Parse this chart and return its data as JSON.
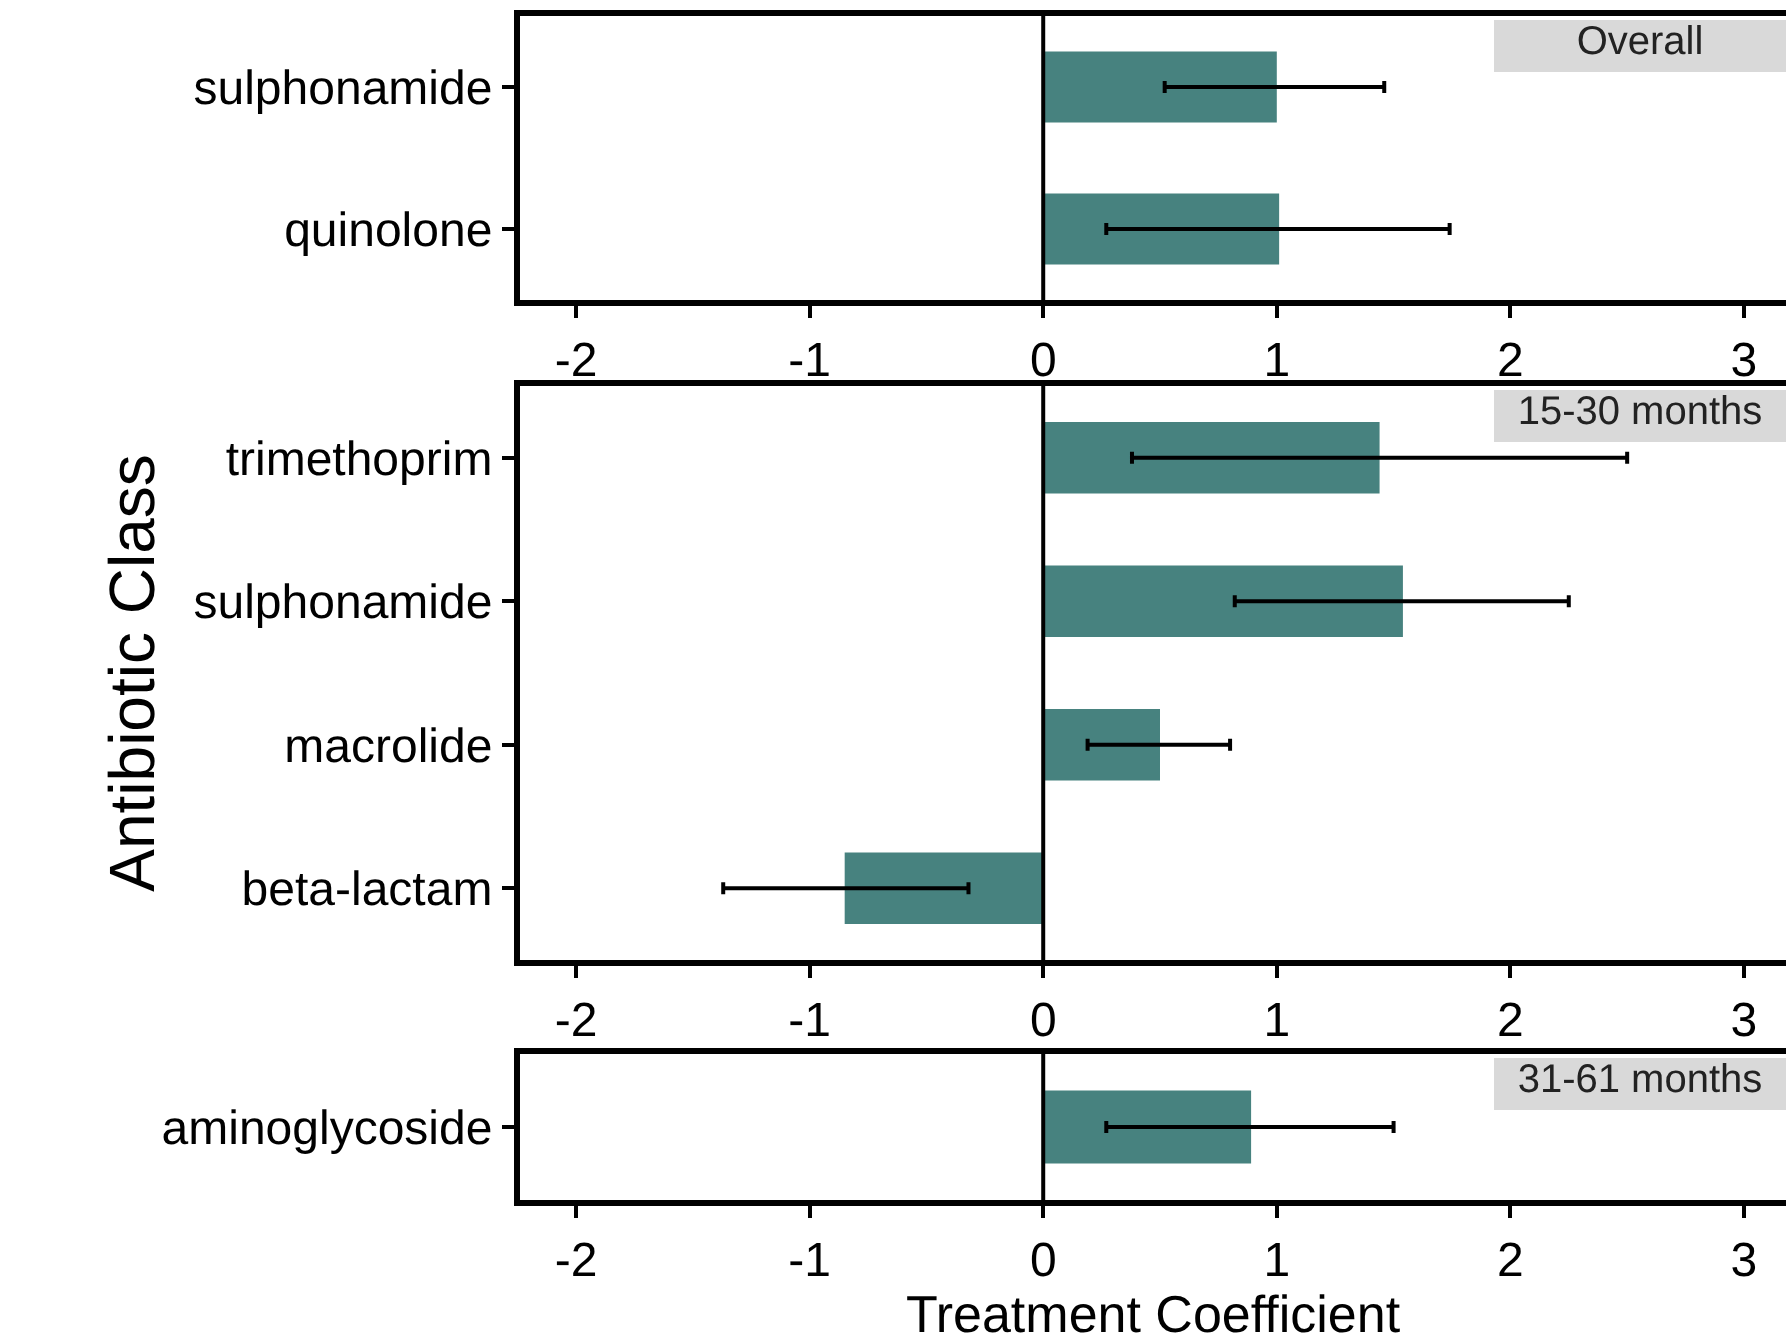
{
  "chart_data": [
    {
      "type": "bar",
      "orientation": "horizontal",
      "title": "Overall",
      "categories": [
        "sulphonamide",
        "quinolone"
      ],
      "values": [
        1.0,
        1.01
      ],
      "errors": [
        [
          0.52,
          1.46
        ],
        [
          0.27,
          1.74
        ]
      ],
      "color": "#47827f",
      "xlim": [
        -2.24,
        3.18
      ],
      "xticks": [
        -2,
        -1,
        0,
        1,
        2,
        3
      ],
      "ref_lines": [
        {
          "axis": "x",
          "value": 0
        }
      ],
      "grid": false
    },
    {
      "type": "bar",
      "orientation": "horizontal",
      "title": "15-30 months",
      "ylabel": "Antibiotic Class",
      "categories": [
        "trimethoprim",
        "sulphonamide",
        "macrolide",
        "beta-lactam"
      ],
      "values": [
        1.44,
        1.54,
        0.5,
        -0.85
      ],
      "errors": [
        [
          0.38,
          2.5
        ],
        [
          0.82,
          2.25
        ],
        [
          0.19,
          0.8
        ],
        [
          -1.37,
          -0.32
        ]
      ],
      "color": "#47827f",
      "xlim": [
        -2.24,
        3.18
      ],
      "xticks": [
        -2,
        -1,
        0,
        1,
        2,
        3
      ],
      "ref_lines": [
        {
          "axis": "x",
          "value": 0
        }
      ],
      "grid": false
    },
    {
      "type": "bar",
      "orientation": "horizontal",
      "title": "31-61 months",
      "xlabel": "Treatment Coefficient",
      "categories": [
        "aminoglycoside"
      ],
      "values": [
        0.89
      ],
      "errors": [
        [
          0.27,
          1.5
        ]
      ],
      "color": "#47827f",
      "xlim": [
        -2.24,
        3.18
      ],
      "xticks": [
        -2,
        -1,
        0,
        1,
        2,
        3
      ],
      "ref_lines": [
        {
          "axis": "x",
          "value": 0
        }
      ],
      "grid": false
    }
  ]
}
